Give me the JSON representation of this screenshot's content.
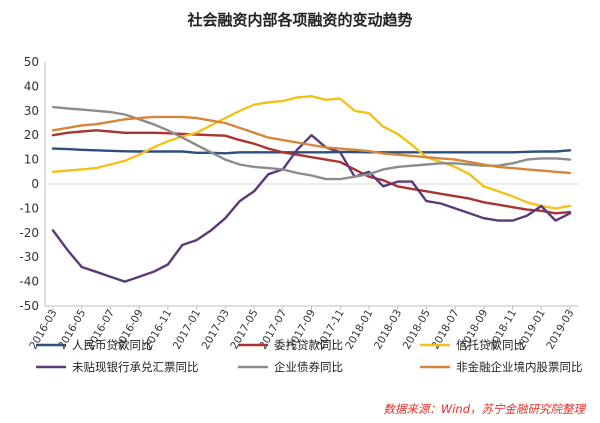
{
  "chart_data": {
    "type": "line",
    "title": "社会融资内部各项融资的变动趋势",
    "source": "数据来源：Wind，苏宁金融研究院整理",
    "ylim": [
      -50,
      50
    ],
    "yticks": [
      -50,
      -40,
      -30,
      -20,
      -10,
      0,
      10,
      20,
      30,
      40,
      50
    ],
    "x": [
      "2016-03",
      "2016-04",
      "2016-05",
      "2016-06",
      "2016-07",
      "2016-08",
      "2016-09",
      "2016-10",
      "2016-11",
      "2016-12",
      "2017-01",
      "2017-02",
      "2017-03",
      "2017-04",
      "2017-05",
      "2017-06",
      "2017-07",
      "2017-08",
      "2017-09",
      "2017-10",
      "2017-11",
      "2017-12",
      "2018-01",
      "2018-02",
      "2018-03",
      "2018-04",
      "2018-05",
      "2018-06",
      "2018-07",
      "2018-08",
      "2018-09",
      "2018-10",
      "2018-11",
      "2018-12",
      "2019-01",
      "2019-02",
      "2019-03"
    ],
    "xtick_labels": [
      "2016-03",
      "2016-05",
      "2016-07",
      "2016-09",
      "2016-11",
      "2017-01",
      "2017-03",
      "2017-05",
      "2017-07",
      "2017-09",
      "2017-11",
      "2018-01",
      "2018-03",
      "2018-05",
      "2018-07",
      "2018-09",
      "2018-11",
      "2019-01",
      "2019-03"
    ],
    "grid": "horizontal",
    "legend_position": "bottom",
    "series": [
      {
        "name": "人民币贷款同比",
        "color": "#2e4e7e",
        "values": [
          14.5,
          14.3,
          14.0,
          13.8,
          13.6,
          13.4,
          13.3,
          13.3,
          13.3,
          13.3,
          12.8,
          12.8,
          12.6,
          13.0,
          13.0,
          13.0,
          13.0,
          13.0,
          13.0,
          13.0,
          13.1,
          13.1,
          13.0,
          13.0,
          13.0,
          13.0,
          13.0,
          13.0,
          13.0,
          13.0,
          13.0,
          13.0,
          13.0,
          13.2,
          13.3,
          13.3,
          13.8
        ]
      },
      {
        "name": "委托贷款同比",
        "color": "#a83532",
        "values": [
          20.0,
          21.0,
          21.5,
          22.0,
          21.5,
          21.0,
          21.0,
          21.0,
          20.8,
          20.5,
          20.3,
          20.0,
          19.8,
          18.0,
          16.5,
          14.5,
          13.0,
          12.0,
          11.0,
          10.0,
          9.0,
          6.0,
          3.0,
          1.5,
          -1.0,
          -2.0,
          -3.0,
          -4.0,
          -5.0,
          -6.0,
          -7.5,
          -8.5,
          -9.5,
          -10.5,
          -11.0,
          -12.0,
          -11.5
        ]
      },
      {
        "name": "信托贷款同比",
        "color": "#f2c218",
        "values": [
          5.0,
          5.5,
          6.0,
          6.5,
          8.0,
          9.5,
          12.0,
          15.0,
          17.5,
          19.5,
          21.0,
          24.0,
          27.0,
          30.0,
          32.5,
          33.5,
          34.0,
          35.5,
          36.0,
          34.5,
          35.0,
          30.0,
          29.0,
          23.5,
          20.5,
          16.0,
          11.0,
          9.0,
          7.0,
          4.0,
          -1.0,
          -3.0,
          -5.0,
          -7.5,
          -9.0,
          -10.0,
          -9.0
        ]
      },
      {
        "name": "未贴现银行承兑汇票同比",
        "color": "#5b3a78",
        "values": [
          -19.0,
          -27.0,
          -34.0,
          -36.0,
          -38.0,
          -40.0,
          -38.0,
          -36.0,
          -33.0,
          -25.0,
          -23.0,
          -19.0,
          -14.0,
          -7.0,
          -3.0,
          4.0,
          6.0,
          14.0,
          20.0,
          15.0,
          13.0,
          3.0,
          5.0,
          -1.0,
          1.0,
          1.0,
          -7.0,
          -8.0,
          -10.0,
          -12.0,
          -14.0,
          -15.0,
          -15.0,
          -13.0,
          -9.0,
          -15.0,
          -12.0
        ]
      },
      {
        "name": "企业债券同比",
        "color": "#8c8c8c",
        "values": [
          31.5,
          31.0,
          30.5,
          30.0,
          29.5,
          28.5,
          26.5,
          24.5,
          22.0,
          19.0,
          16.0,
          13.0,
          10.0,
          8.0,
          7.0,
          6.5,
          6.0,
          4.5,
          3.5,
          2.0,
          2.0,
          3.0,
          4.0,
          6.0,
          7.0,
          7.5,
          8.0,
          8.5,
          8.5,
          8.0,
          7.5,
          7.5,
          8.5,
          10.0,
          10.5,
          10.5,
          10.0
        ]
      },
      {
        "name": "非金融企业境内股票同比",
        "color": "#d4863a",
        "values": [
          22.0,
          23.0,
          24.0,
          24.5,
          25.5,
          26.5,
          27.0,
          27.5,
          27.5,
          27.5,
          27.0,
          26.0,
          25.0,
          23.0,
          21.0,
          19.0,
          18.0,
          17.0,
          16.0,
          15.0,
          14.5,
          14.0,
          13.5,
          12.5,
          12.0,
          11.5,
          11.0,
          10.5,
          10.0,
          9.0,
          8.0,
          7.0,
          6.5,
          6.0,
          5.5,
          5.0,
          4.5
        ]
      }
    ]
  }
}
